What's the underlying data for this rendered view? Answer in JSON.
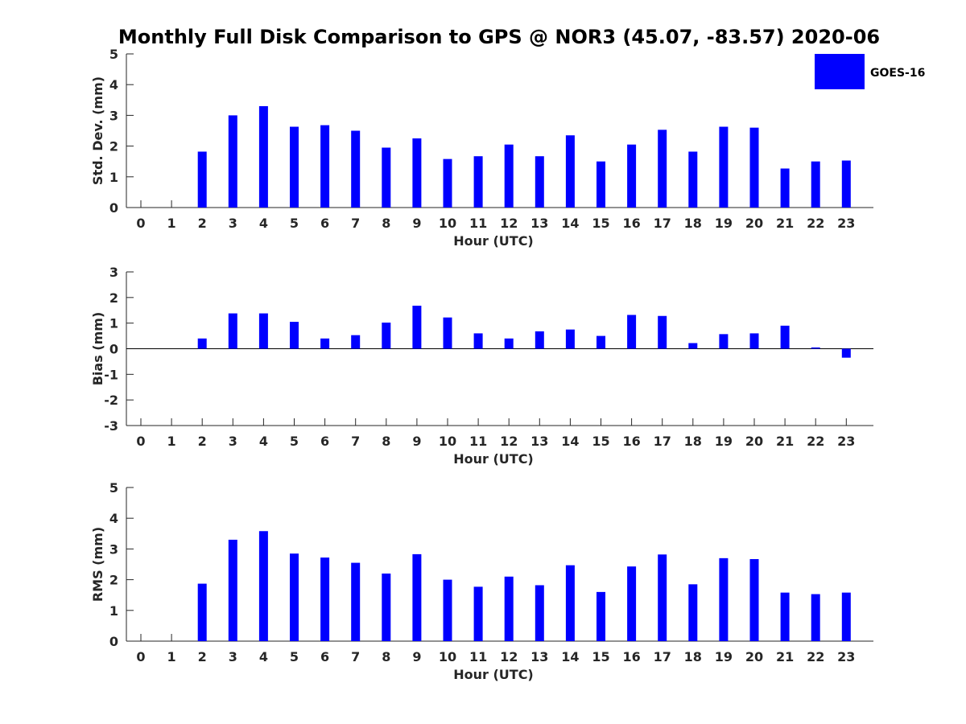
{
  "title": "Monthly Full Disk Comparison to GPS @ NOR3 (45.07, -83.57) 2020-06",
  "colors": {
    "bar": "#0000ff",
    "axis": "#262626",
    "background": "#ffffff"
  },
  "legend": {
    "label": "GOES-16",
    "placement": "top-right"
  },
  "chart_data": [
    {
      "type": "bar",
      "xlabel": "Hour (UTC)",
      "ylabel": "Std. Dev. (mm)",
      "ylim": [
        0,
        5
      ],
      "yticks": [
        "0",
        "1",
        "2",
        "3",
        "4",
        "5"
      ],
      "categories": [
        "0",
        "1",
        "2",
        "3",
        "4",
        "5",
        "6",
        "7",
        "8",
        "9",
        "10",
        "11",
        "12",
        "13",
        "14",
        "15",
        "16",
        "17",
        "18",
        "19",
        "20",
        "21",
        "22",
        "23"
      ],
      "series": [
        {
          "name": "GOES-16",
          "values": [
            null,
            null,
            1.82,
            3.0,
            3.3,
            2.63,
            2.68,
            2.5,
            1.95,
            2.25,
            1.58,
            1.67,
            2.05,
            1.67,
            2.35,
            1.5,
            2.05,
            2.53,
            1.82,
            2.63,
            2.6,
            1.27,
            1.5,
            1.53
          ]
        }
      ]
    },
    {
      "type": "bar",
      "xlabel": "Hour (UTC)",
      "ylabel": "Bias (mm)",
      "ylim": [
        -3,
        3
      ],
      "yticks": [
        "-3",
        "-2",
        "-1",
        "0",
        "1",
        "2",
        "3"
      ],
      "categories": [
        "0",
        "1",
        "2",
        "3",
        "4",
        "5",
        "6",
        "7",
        "8",
        "9",
        "10",
        "11",
        "12",
        "13",
        "14",
        "15",
        "16",
        "17",
        "18",
        "19",
        "20",
        "21",
        "22",
        "23"
      ],
      "series": [
        {
          "name": "GOES-16",
          "values": [
            null,
            null,
            0.4,
            1.38,
            1.38,
            1.05,
            0.4,
            0.53,
            1.02,
            1.68,
            1.22,
            0.6,
            0.4,
            0.68,
            0.75,
            0.5,
            1.32,
            1.28,
            0.22,
            0.57,
            0.6,
            0.9,
            0.05,
            -0.35
          ]
        }
      ]
    },
    {
      "type": "bar",
      "xlabel": "Hour (UTC)",
      "ylabel": "RMS (mm)",
      "ylim": [
        0,
        5
      ],
      "yticks": [
        "0",
        "1",
        "2",
        "3",
        "4",
        "5"
      ],
      "categories": [
        "0",
        "1",
        "2",
        "3",
        "4",
        "5",
        "6",
        "7",
        "8",
        "9",
        "10",
        "11",
        "12",
        "13",
        "14",
        "15",
        "16",
        "17",
        "18",
        "19",
        "20",
        "21",
        "22",
        "23"
      ],
      "series": [
        {
          "name": "GOES-16",
          "values": [
            null,
            null,
            1.87,
            3.3,
            3.58,
            2.85,
            2.72,
            2.55,
            2.2,
            2.83,
            2.0,
            1.77,
            2.1,
            1.82,
            2.47,
            1.6,
            2.43,
            2.82,
            1.85,
            2.7,
            2.67,
            1.58,
            1.53,
            1.58
          ]
        }
      ]
    }
  ]
}
